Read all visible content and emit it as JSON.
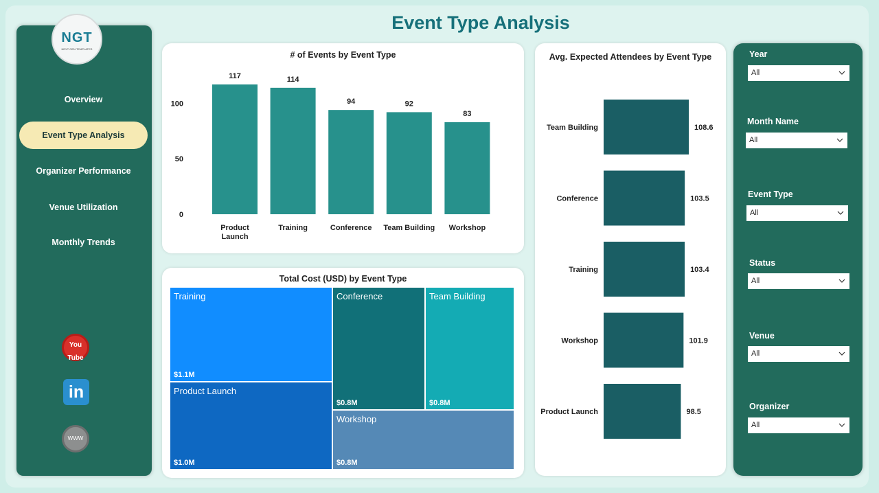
{
  "page_title": "Event Type Analysis",
  "logo": {
    "text": "NGT",
    "subtitle": "NEXT GEN TEMPLATES"
  },
  "nav": {
    "items": [
      {
        "label": "Overview"
      },
      {
        "label": "Event Type Analysis"
      },
      {
        "label": "Organizer Performance"
      },
      {
        "label": "Venue Utilization"
      },
      {
        "label": "Monthly Trends"
      }
    ],
    "active": "Event Type Analysis"
  },
  "social": {
    "youtube_icon": "youtube-icon",
    "youtube_label_1": "You",
    "youtube_label_2": "Tube",
    "linkedin_icon": "linkedin-icon",
    "linkedin_label": "in",
    "website_icon": "globe-icon",
    "website_label": "WWW"
  },
  "colors": {
    "accent": "#16707a",
    "sidebar": "#226b5c",
    "active_nav": "#f6eab4",
    "bar": "#27918c",
    "hbar": "#1a5e64"
  },
  "chart_data": [
    {
      "type": "bar",
      "title": "# of Events by Event Type",
      "categories": [
        "Product Launch",
        "Training",
        "Conference",
        "Team Building",
        "Workshop"
      ],
      "category_lines": [
        [
          "Product",
          "Launch"
        ],
        [
          "Training"
        ],
        [
          "Conference"
        ],
        [
          "Team Building"
        ],
        [
          "Workshop"
        ]
      ],
      "values": [
        117,
        114,
        94,
        92,
        83
      ],
      "yticks": [
        0,
        50,
        100
      ],
      "ylim": [
        0,
        117
      ],
      "xlabel": "",
      "ylabel": "",
      "grid": false,
      "data_labels": true
    },
    {
      "type": "bar",
      "orientation": "horizontal",
      "title": "Avg. Expected Attendees by Event Type",
      "categories": [
        "Team Building",
        "Conference",
        "Training",
        "Workshop",
        "Product Launch"
      ],
      "values": [
        108.6,
        103.5,
        103.4,
        101.9,
        98.5
      ],
      "grid": false,
      "data_labels": true
    },
    {
      "type": "treemap",
      "title": "Total Cost (USD) by Event Type",
      "items": [
        {
          "name": "Training",
          "label": "$1.1M",
          "color": "#118dff"
        },
        {
          "name": "Product Launch",
          "label": "$1.0M",
          "color": "#0e68c2"
        },
        {
          "name": "Conference",
          "label": "$0.8M",
          "color": "#117078"
        },
        {
          "name": "Team Building",
          "label": "$0.8M",
          "color": "#14abb4"
        },
        {
          "name": "Workshop",
          "label": "$0.8M",
          "color": "#5589b6"
        }
      ]
    }
  ],
  "filters": [
    {
      "label": "Year",
      "value": "All"
    },
    {
      "label": "Month Name",
      "value": "All"
    },
    {
      "label": "Event Type",
      "value": "All"
    },
    {
      "label": "Status",
      "value": "All"
    },
    {
      "label": "Venue",
      "value": "All"
    },
    {
      "label": "Organizer",
      "value": "All"
    }
  ]
}
